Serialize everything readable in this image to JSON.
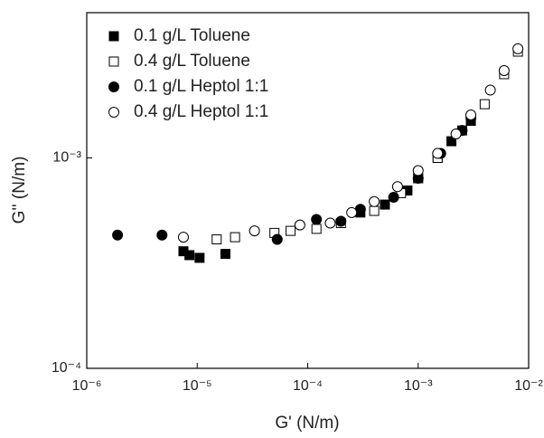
{
  "chart_data": {
    "type": "scatter",
    "xlabel": "G' (N/m)",
    "ylabel": "G'' (N/m)",
    "xscale": "log",
    "yscale": "log",
    "xlim": [
      1e-06,
      0.01
    ],
    "ylim": [
      0.0001,
      0.0049
    ],
    "xticks": [
      {
        "value": 1e-06,
        "label": "10⁻⁶"
      },
      {
        "value": 1e-05,
        "label": "10⁻⁵"
      },
      {
        "value": 0.0001,
        "label": "10⁻⁴"
      },
      {
        "value": 0.001,
        "label": "10⁻³"
      },
      {
        "value": 0.01,
        "label": "10⁻²"
      }
    ],
    "yticks": [
      {
        "value": 0.0001,
        "label": "10⁻⁴"
      },
      {
        "value": 0.001,
        "label": "10⁻³"
      }
    ],
    "legend": "upper left",
    "series": [
      {
        "name": "0.1 g/L Toluene",
        "color": "#000000",
        "marker": "square",
        "filled": true,
        "x": [
          7.5e-06,
          8.5e-06,
          1.05e-05,
          1.8e-05,
          0.0003,
          0.0005,
          0.0008,
          0.001,
          0.0015,
          0.002,
          0.003
        ],
        "values": [
          0.00036,
          0.000345,
          0.000335,
          0.00035,
          0.00055,
          0.0006,
          0.0007,
          0.0008,
          0.001,
          0.0012,
          0.0015
        ]
      },
      {
        "name": "0.4 g/L Toluene",
        "color": "#000000",
        "marker": "square",
        "filled": false,
        "x": [
          1.5e-05,
          2.2e-05,
          5e-05,
          7e-05,
          0.00012,
          0.0002,
          0.0004,
          0.0007,
          0.001,
          0.0015,
          0.0025,
          0.004,
          0.006,
          0.008
        ],
        "values": [
          0.00041,
          0.00042,
          0.00044,
          0.00045,
          0.00046,
          0.00049,
          0.00056,
          0.00068,
          0.0008,
          0.001,
          0.00135,
          0.0018,
          0.0025,
          0.0032
        ]
      },
      {
        "name": "0.1 g/L Heptol 1:1",
        "color": "#000000",
        "marker": "circle",
        "filled": true,
        "x": [
          1.9e-06,
          4.8e-06,
          5.3e-05,
          0.00012,
          0.0002,
          0.0003,
          0.0006,
          0.001,
          0.0016,
          0.0025,
          0.003
        ],
        "values": [
          0.00043,
          0.00043,
          0.00041,
          0.00051,
          0.0005,
          0.00057,
          0.00065,
          0.0008,
          0.00105,
          0.00135,
          0.00155
        ]
      },
      {
        "name": "0.4 g/L Heptol 1:1",
        "color": "#000000",
        "marker": "circle",
        "filled": false,
        "x": [
          7.5e-06,
          3.3e-05,
          8.5e-05,
          0.00016,
          0.00025,
          0.0004,
          0.00065,
          0.001,
          0.0015,
          0.0022,
          0.003,
          0.0045,
          0.006,
          0.008
        ],
        "values": [
          0.00042,
          0.00045,
          0.00048,
          0.00049,
          0.00055,
          0.00062,
          0.00073,
          0.00087,
          0.00105,
          0.0013,
          0.0016,
          0.0021,
          0.0026,
          0.0033
        ]
      }
    ]
  }
}
